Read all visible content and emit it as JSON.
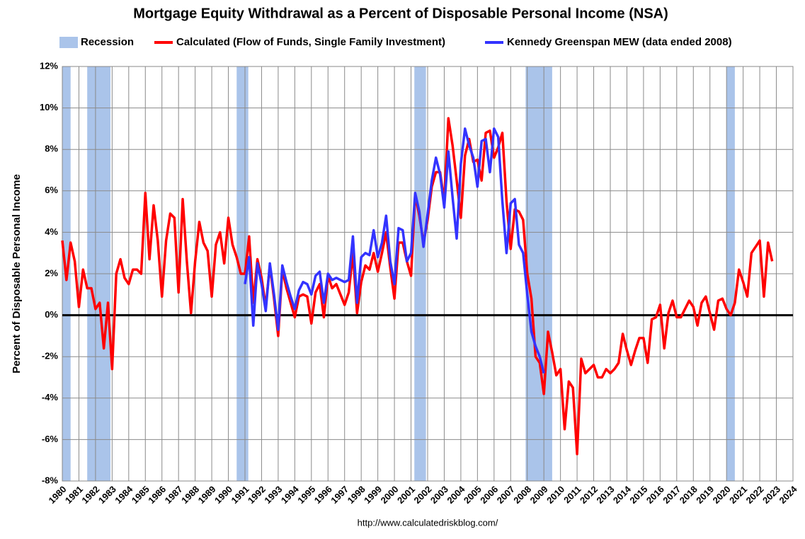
{
  "chart_data": {
    "type": "line",
    "title": "Mortgage Equity Withdrawal as a Percent of Disposable Personal Income (NSA)",
    "y_label": "Percent of Disposable Personal Income",
    "source": "http://www.calculatedriskblog.com/",
    "recession_label": "Recession",
    "recession_color": "#aac4ea",
    "recessions": [
      [
        1980.0,
        1980.5
      ],
      [
        1981.5,
        1982.9
      ],
      [
        1990.5,
        1991.2
      ],
      [
        2001.2,
        2001.9
      ],
      [
        2007.9,
        2009.5
      ],
      [
        2020.0,
        2020.5
      ]
    ],
    "xlim": [
      1980,
      2024
    ],
    "xticks": [
      1980,
      1981,
      1982,
      1983,
      1984,
      1985,
      1986,
      1987,
      1988,
      1989,
      1990,
      1991,
      1992,
      1993,
      1994,
      1995,
      1996,
      1997,
      1998,
      1999,
      2000,
      2001,
      2002,
      2003,
      2004,
      2005,
      2006,
      2007,
      2008,
      2009,
      2010,
      2011,
      2012,
      2013,
      2014,
      2015,
      2016,
      2017,
      2018,
      2019,
      2020,
      2021,
      2022,
      2023,
      2024
    ],
    "ylim": [
      -8,
      12
    ],
    "yticks": [
      {
        "value": -8,
        "label": "-8%"
      },
      {
        "value": -6,
        "label": "-6%"
      },
      {
        "value": -4,
        "label": "-4%"
      },
      {
        "value": -2,
        "label": "-2%"
      },
      {
        "value": 0,
        "label": "0%"
      },
      {
        "value": 2,
        "label": "2%"
      },
      {
        "value": 4,
        "label": "4%"
      },
      {
        "value": 6,
        "label": "6%"
      },
      {
        "value": 8,
        "label": "8%"
      },
      {
        "value": 10,
        "label": "10%"
      },
      {
        "value": 12,
        "label": "12%"
      }
    ],
    "grid": true,
    "x": [
      1980,
      1980.25,
      1980.5,
      1980.75,
      1981,
      1981.25,
      1981.5,
      1981.75,
      1982,
      1982.25,
      1982.5,
      1982.75,
      1983,
      1983.25,
      1983.5,
      1983.75,
      1984,
      1984.25,
      1984.5,
      1984.75,
      1985,
      1985.25,
      1985.5,
      1985.75,
      1986,
      1986.25,
      1986.5,
      1986.75,
      1987,
      1987.25,
      1987.5,
      1987.75,
      1988,
      1988.25,
      1988.5,
      1988.75,
      1989,
      1989.25,
      1989.5,
      1989.75,
      1990,
      1990.25,
      1990.5,
      1990.75,
      1991,
      1991.25,
      1991.5,
      1991.75,
      1992,
      1992.25,
      1992.5,
      1992.75,
      1993,
      1993.25,
      1993.5,
      1993.75,
      1994,
      1994.25,
      1994.5,
      1994.75,
      1995,
      1995.25,
      1995.5,
      1995.75,
      1996,
      1996.25,
      1996.5,
      1996.75,
      1997,
      1997.25,
      1997.5,
      1997.75,
      1998,
      1998.25,
      1998.5,
      1998.75,
      1999,
      1999.25,
      1999.5,
      1999.75,
      2000,
      2000.25,
      2000.5,
      2000.75,
      2001,
      2001.25,
      2001.5,
      2001.75,
      2002,
      2002.25,
      2002.5,
      2002.75,
      2003,
      2003.25,
      2003.5,
      2003.75,
      2004,
      2004.25,
      2004.5,
      2004.75,
      2005,
      2005.25,
      2005.5,
      2005.75,
      2006,
      2006.25,
      2006.5,
      2006.75,
      2007,
      2007.25,
      2007.5,
      2007.75,
      2008,
      2008.25,
      2008.5,
      2008.75,
      2009,
      2009.25,
      2009.5,
      2009.75,
      2010,
      2010.25,
      2010.5,
      2010.75,
      2011,
      2011.25,
      2011.5,
      2011.75,
      2012,
      2012.25,
      2012.5,
      2012.75,
      2013,
      2013.25,
      2013.5,
      2013.75,
      2014,
      2014.25,
      2014.5,
      2014.75,
      2015,
      2015.25,
      2015.5,
      2015.75,
      2016,
      2016.25,
      2016.5,
      2016.75,
      2017,
      2017.25,
      2017.5,
      2017.75,
      2018,
      2018.25,
      2018.5,
      2018.75,
      2019,
      2019.25,
      2019.5,
      2019.75,
      2020,
      2020.25,
      2020.5,
      2020.75,
      2021,
      2021.25,
      2021.5,
      2021.75,
      2022,
      2022.25,
      2022.5,
      2022.75
    ],
    "series": [
      {
        "name": "Calculated (Flow of Funds, Single Family Investment)",
        "color": "#ff0000",
        "values": [
          3.6,
          1.7,
          3.5,
          2.6,
          0.4,
          2.2,
          1.3,
          1.3,
          0.3,
          0.6,
          -1.6,
          0.6,
          -2.6,
          2.0,
          2.7,
          1.8,
          1.5,
          2.2,
          2.2,
          2.0,
          5.9,
          2.7,
          5.3,
          3.6,
          0.9,
          3.6,
          4.9,
          4.7,
          1.1,
          5.6,
          2.6,
          0.1,
          2.6,
          4.5,
          3.5,
          3.1,
          0.9,
          3.4,
          4.0,
          2.5,
          4.7,
          3.4,
          2.8,
          2.0,
          2.0,
          3.8,
          0.6,
          2.7,
          1.8,
          0.4,
          2.4,
          0.8,
          -1.0,
          2.2,
          1.3,
          0.6,
          -0.1,
          0.9,
          1.0,
          0.9,
          -0.4,
          1.1,
          1.5,
          -0.1,
          1.9,
          1.3,
          1.5,
          1.0,
          0.5,
          1.1,
          3.0,
          0.1,
          1.6,
          2.4,
          2.2,
          3.0,
          2.1,
          3.0,
          4.0,
          2.3,
          0.8,
          3.5,
          3.5,
          2.6,
          1.9,
          5.8,
          4.8,
          3.5,
          4.6,
          6.2,
          6.9,
          6.9,
          5.5,
          9.5,
          8.2,
          6.5,
          4.7,
          7.7,
          8.5,
          7.4,
          7.5,
          6.5,
          8.8,
          8.9,
          7.6,
          8.1,
          8.8,
          5.5,
          3.2,
          5.1,
          5.0,
          4.6,
          2.0,
          0.8,
          -2.0,
          -2.3,
          -3.8,
          -0.8,
          -1.8,
          -2.9,
          -2.6,
          -5.5,
          -3.2,
          -3.5,
          -6.7,
          -2.1,
          -2.8,
          -2.6,
          -2.4,
          -3.0,
          -3.0,
          -2.6,
          -2.8,
          -2.6,
          -2.3,
          -0.9,
          -1.7,
          -2.4,
          -1.7,
          -1.1,
          -1.1,
          -2.3,
          -0.2,
          -0.1,
          0.5,
          -1.6,
          0.1,
          0.7,
          -0.1,
          -0.1,
          0.3,
          0.7,
          0.4,
          -0.5,
          0.6,
          0.9,
          0.1,
          -0.7,
          0.7,
          0.8,
          0.3,
          0.0,
          0.6,
          2.2,
          1.6,
          0.9,
          3.0,
          3.3,
          3.6,
          0.9,
          3.5,
          2.6
        ]
      },
      {
        "name": "Kennedy Greenspan MEW (data ended 2008)",
        "color": "#3333ff",
        "values": [
          null,
          null,
          null,
          null,
          null,
          null,
          null,
          null,
          null,
          null,
          null,
          null,
          null,
          null,
          null,
          null,
          null,
          null,
          null,
          null,
          null,
          null,
          null,
          null,
          null,
          null,
          null,
          null,
          null,
          null,
          null,
          null,
          null,
          null,
          null,
          null,
          null,
          null,
          null,
          null,
          null,
          null,
          null,
          null,
          1.5,
          2.8,
          -0.5,
          2.5,
          1.5,
          0.2,
          2.5,
          1.0,
          -0.7,
          2.4,
          1.6,
          0.9,
          0.3,
          1.2,
          1.6,
          1.5,
          1.0,
          1.9,
          2.1,
          0.6,
          2.0,
          1.7,
          1.8,
          1.7,
          1.6,
          1.7,
          3.8,
          0.6,
          2.8,
          3.0,
          2.9,
          4.1,
          2.8,
          3.5,
          4.8,
          2.6,
          1.5,
          4.2,
          4.1,
          2.6,
          3.0,
          5.9,
          5.0,
          3.3,
          4.9,
          6.5,
          7.6,
          6.8,
          5.2,
          7.9,
          5.7,
          3.7,
          7.3,
          9.0,
          8.2,
          7.6,
          6.2,
          8.4,
          8.5,
          6.9,
          9.0,
          8.6,
          5.5,
          3.0,
          5.4,
          5.6,
          3.4,
          3.0,
          1.0,
          -0.8,
          -1.5,
          -2.0,
          -2.8,
          null,
          null,
          null,
          null,
          null,
          null,
          null,
          null,
          null,
          null,
          null,
          null,
          null,
          null,
          null,
          null,
          null,
          null,
          null,
          null,
          null,
          null,
          null,
          null,
          null,
          null,
          null,
          null,
          null,
          null,
          null,
          null,
          null,
          null,
          null,
          null,
          null,
          null,
          null,
          null,
          null,
          null,
          null,
          null,
          null,
          null,
          null,
          null,
          null,
          null,
          null,
          null,
          null,
          null,
          null
        ]
      }
    ]
  }
}
